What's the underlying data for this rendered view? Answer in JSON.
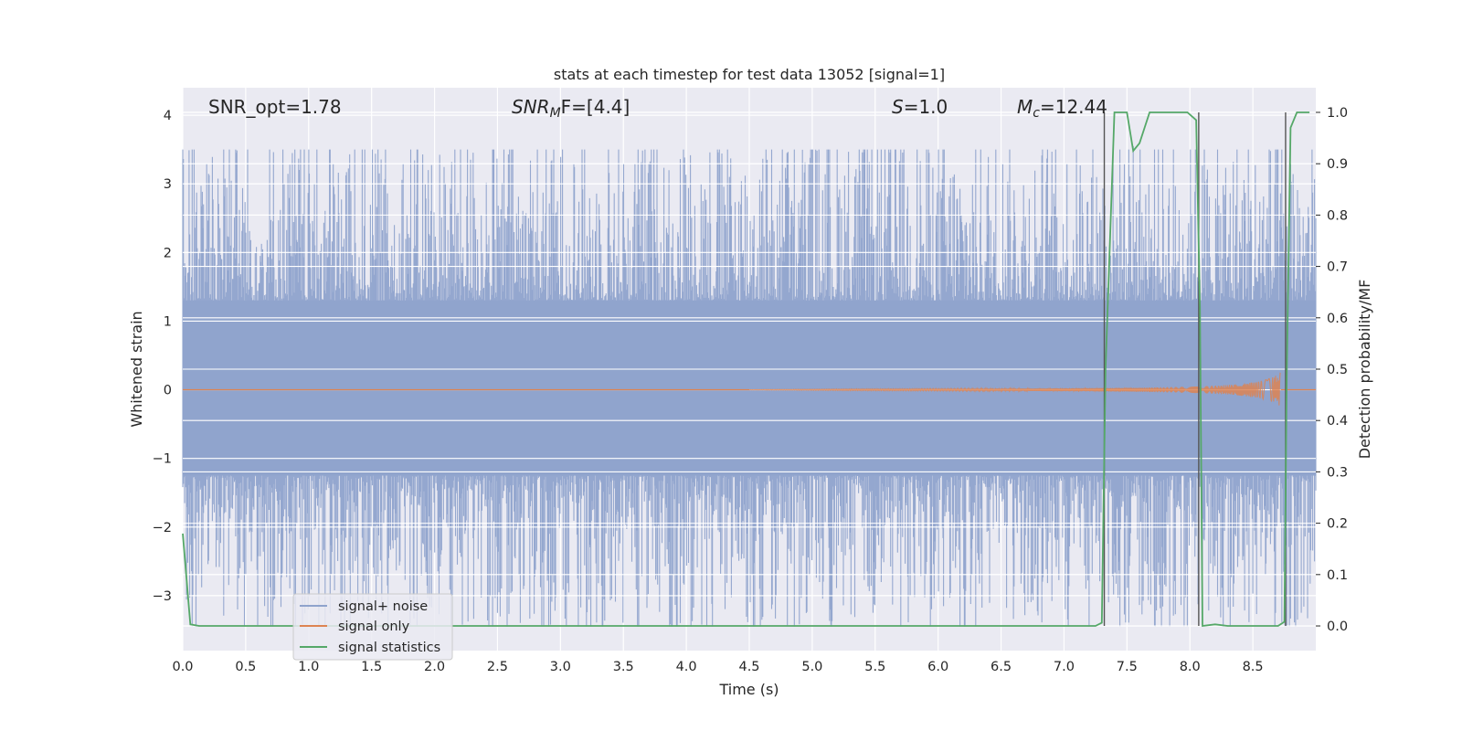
{
  "chart_data": {
    "type": "line",
    "title": "stats at each timestep for test data 13052 [signal=1]",
    "xlabel": "Time (s)",
    "ylabel": "Whitened strain",
    "y2label": "Detection probability/MF",
    "xlim": [
      0.0,
      9.0
    ],
    "ylim": [
      -3.8,
      4.4
    ],
    "y2lim": [
      -0.048,
      1.048
    ],
    "xticks": [
      0.0,
      0.5,
      1.0,
      1.5,
      2.0,
      2.5,
      3.0,
      3.5,
      4.0,
      4.5,
      5.0,
      5.5,
      6.0,
      6.5,
      7.0,
      7.5,
      8.0,
      8.5
    ],
    "xtick_labels": [
      "0.0",
      "0.5",
      "1.0",
      "1.5",
      "2.0",
      "2.5",
      "3.0",
      "3.5",
      "4.0",
      "4.5",
      "5.0",
      "5.5",
      "6.0",
      "6.5",
      "7.0",
      "7.5",
      "8.0",
      "8.5"
    ],
    "yticks": [
      -3,
      -2,
      -1,
      0,
      1,
      2,
      3,
      4
    ],
    "ytick_labels": [
      "−3",
      "−2",
      "−1",
      "0",
      "1",
      "2",
      "3",
      "4"
    ],
    "y2ticks": [
      0.0,
      0.1,
      0.2,
      0.3,
      0.4,
      0.5,
      0.6,
      0.7,
      0.8,
      0.9,
      1.0
    ],
    "y2tick_labels": [
      "0.0",
      "0.1",
      "0.2",
      "0.3",
      "0.4",
      "0.5",
      "0.6",
      "0.7",
      "0.8",
      "0.9",
      "1.0"
    ],
    "annotations": {
      "snr_opt": "SNR_opt=1.78",
      "snr_mf_pre": "SNR",
      "snr_mf_sub": "M",
      "snr_mf_post": "F=[4.4]",
      "s_label": "S",
      "s_value": "=1.0",
      "mc_label": "M",
      "mc_sub": "c",
      "mc_value": "=12.44"
    },
    "legend_position": "lower-left",
    "series": [
      {
        "name": "signal+ noise",
        "color": "#8fa3cc",
        "kind": "noise-band",
        "core_band": [
          -1.25,
          1.3
        ],
        "spike_range": [
          -3.4,
          3.45
        ],
        "notable_peaks": [
          {
            "x": 1.95,
            "y": 3.2
          },
          {
            "x": 4.8,
            "y": 3.45
          },
          {
            "x": 4.6,
            "y": -3.35
          },
          {
            "x": 2.5,
            "y": -3.25
          },
          {
            "x": 0.65,
            "y": -3.15
          },
          {
            "x": 7.55,
            "y": 3.55
          },
          {
            "x": 8.1,
            "y": 1.8
          }
        ]
      },
      {
        "name": "signal only",
        "color": "#dd8452",
        "kind": "chirp",
        "start_x": 4.5,
        "peak_x": 8.72,
        "peak_amplitude": 0.25
      },
      {
        "name": "signal statistics",
        "color": "#55a868",
        "axis": "right",
        "x": [
          0.0,
          0.06,
          0.13,
          0.5,
          1.0,
          2.0,
          3.0,
          4.0,
          5.0,
          6.0,
          7.0,
          7.25,
          7.3,
          7.33,
          7.4,
          7.5,
          7.55,
          7.6,
          7.68,
          7.8,
          7.9,
          7.98,
          8.05,
          8.08,
          8.1,
          8.2,
          8.3,
          8.4,
          8.5,
          8.6,
          8.7,
          8.75,
          8.77,
          8.8,
          8.85,
          8.9,
          8.95
        ],
        "y": [
          0.18,
          0.003,
          0.0,
          0.0,
          0.0,
          0.0,
          0.0,
          0.0,
          0.0,
          0.0,
          0.0,
          0.0,
          0.006,
          0.5,
          1.0,
          1.0,
          0.925,
          0.94,
          1.0,
          1.0,
          1.0,
          1.0,
          0.985,
          0.62,
          0.0,
          0.003,
          0.0,
          0.0,
          0.0,
          0.0,
          0.0,
          0.008,
          0.5,
          0.97,
          1.0,
          1.0,
          1.0
        ]
      }
    ],
    "vertical_markers": [
      {
        "x": 7.32,
        "y2_top": 1.0,
        "y2_bottom": 0.0
      },
      {
        "x": 8.07,
        "y2_top": 1.0,
        "y2_bottom": 0.0
      },
      {
        "x": 8.76,
        "y2_top": 1.0,
        "y2_bottom": 0.0
      }
    ]
  }
}
